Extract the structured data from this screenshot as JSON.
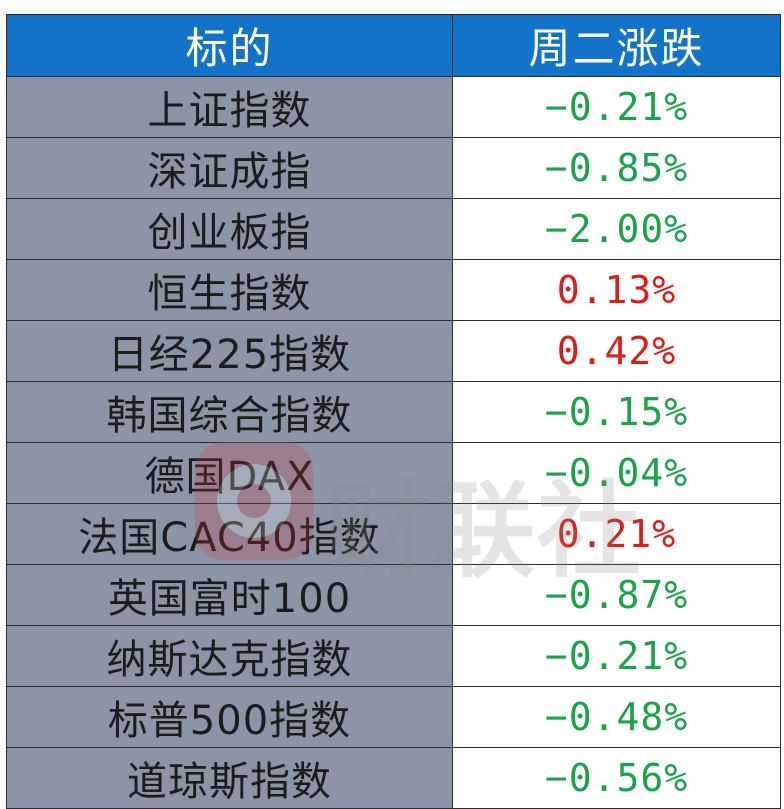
{
  "table": {
    "headers": [
      "标的",
      "周二涨跌"
    ],
    "rows": [
      {
        "name": "上证指数",
        "change": "−0.21%",
        "color": "#1aa34a"
      },
      {
        "name": "深证成指",
        "change": "−0.85%",
        "color": "#1aa34a"
      },
      {
        "name": "创业板指",
        "change": "−2.00%",
        "color": "#1aa34a"
      },
      {
        "name": "恒生指数",
        "change": "0.13%",
        "color": "#e01b1b"
      },
      {
        "name": "日经225指数",
        "change": "0.42%",
        "color": "#e01b1b"
      },
      {
        "name": "韩国综合指数",
        "change": "−0.15%",
        "color": "#1aa34a"
      },
      {
        "name": "德国DAX",
        "change": "−0.04%",
        "color": "#1aa34a"
      },
      {
        "name": "法国CAC40指数",
        "change": "0.21%",
        "color": "#e01b1b"
      },
      {
        "name": "英国富时100",
        "change": "−0.87%",
        "color": "#1aa34a"
      },
      {
        "name": "纳斯达克指数",
        "change": "−0.21%",
        "color": "#1aa34a"
      },
      {
        "name": "标普500指数",
        "change": "−0.48%",
        "color": "#1aa34a"
      },
      {
        "name": "道琼斯指数",
        "change": "−0.56%",
        "color": "#1aa34a"
      }
    ]
  },
  "watermark": {
    "text": "财联社",
    "icon": "cls-logo-icon"
  },
  "colors": {
    "header_bg": "#1273c9",
    "name_bg": "#8b95a5",
    "up": "#e01b1b",
    "down": "#1aa34a"
  }
}
